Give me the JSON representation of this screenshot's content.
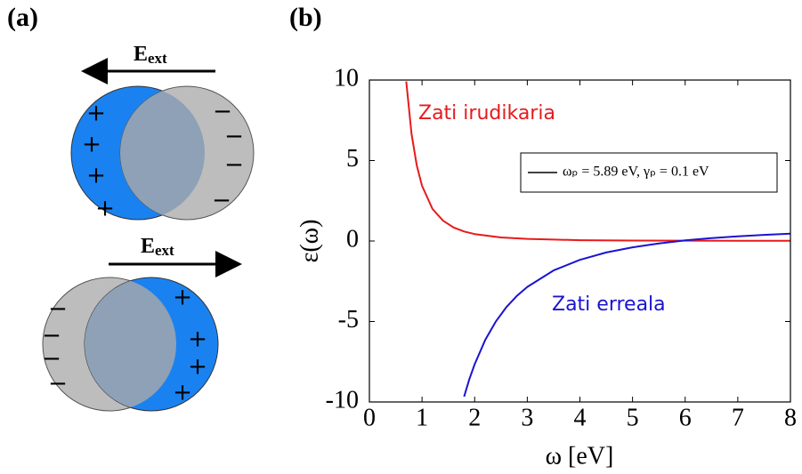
{
  "panel_a": {
    "label": "(a)",
    "top": {
      "field": "E",
      "field_sub": "ext",
      "plus": [
        "+",
        "+",
        "+",
        "+"
      ],
      "minus": [
        "−",
        "−",
        "−",
        "−"
      ]
    },
    "bottom": {
      "field": "E",
      "field_sub": "ext",
      "plus": [
        "+",
        "+",
        "+",
        "+"
      ],
      "minus": [
        "−",
        "−",
        "−",
        "−"
      ]
    }
  },
  "chart_data": {
    "type": "line",
    "panel_label": "(b)",
    "xlabel": "ω [eV]",
    "ylabel": "ε(ω)",
    "xlim": [
      0,
      8
    ],
    "ylim": [
      -10,
      10
    ],
    "xticks": [
      0,
      1,
      2,
      3,
      4,
      5,
      6,
      7,
      8
    ],
    "yticks": [
      -10,
      -5,
      0,
      5,
      10
    ],
    "legend_label": "ωₚ = 5.89 eV, γₚ = 0.1 eV",
    "legend_color": "#000000",
    "legend": "upper right",
    "series": [
      {
        "name": "Zati irudikaria",
        "color": "#e8191b",
        "x": [
          0.7,
          0.8,
          0.9,
          1.0,
          1.2,
          1.4,
          1.6,
          1.8,
          2.0,
          2.5,
          3,
          4,
          5,
          6,
          7,
          8
        ],
        "values": [
          9.91,
          6.67,
          4.7,
          3.43,
          1.99,
          1.26,
          0.84,
          0.59,
          0.43,
          0.22,
          0.13,
          0.05,
          0.03,
          0.02,
          0.01,
          0.01
        ]
      },
      {
        "name": "Zati erreala",
        "color": "#1a14d0",
        "x": [
          1.8,
          1.9,
          2.0,
          2.2,
          2.4,
          2.6,
          2.8,
          3.0,
          3.5,
          4.0,
          4.5,
          5.0,
          5.5,
          6.0,
          6.5,
          7.0,
          7.5,
          8.0
        ],
        "values": [
          -9.67,
          -8.58,
          -7.65,
          -6.15,
          -5.01,
          -4.12,
          -3.42,
          -2.85,
          -1.83,
          -1.17,
          -0.71,
          -0.39,
          -0.15,
          0.04,
          0.18,
          0.29,
          0.38,
          0.46
        ]
      }
    ]
  }
}
